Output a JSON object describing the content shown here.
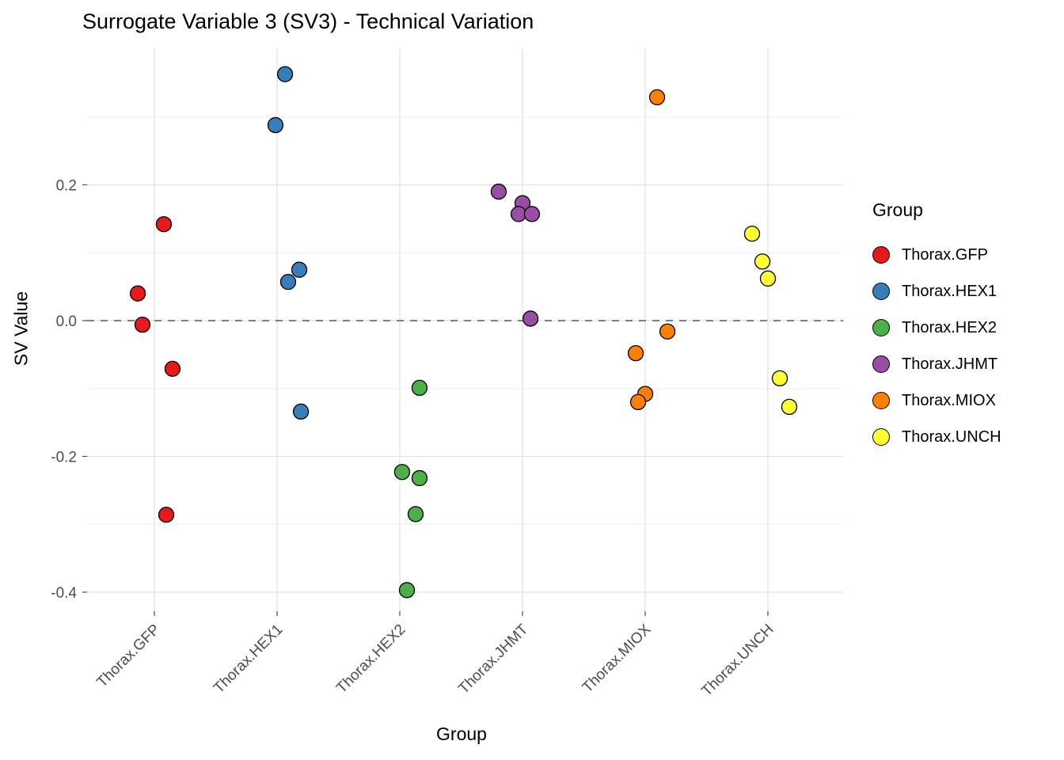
{
  "chart_data": {
    "type": "scatter",
    "title": "Surrogate Variable 3 (SV3) - Technical Variation",
    "xlabel": "Group",
    "ylabel": "SV Value",
    "categories": [
      "Thorax.GFP",
      "Thorax.HEX1",
      "Thorax.HEX2",
      "Thorax.JHMT",
      "Thorax.MIOX",
      "Thorax.UNCH"
    ],
    "yticks": [
      0.2,
      0.0,
      -0.2,
      -0.4
    ],
    "ytick_labels": [
      "0.2",
      "0.0",
      "-0.2",
      "-0.4"
    ],
    "minor_yticks": [
      0.3,
      0.1,
      -0.1,
      -0.3
    ],
    "ylim": [
      -0.43,
      0.4
    ],
    "grid": true,
    "reference_line": {
      "y": 0.0,
      "style": "dashed",
      "color": "#7f7f7f"
    },
    "legend": {
      "title": "Group",
      "position": "right"
    },
    "series": [
      {
        "name": "Thorax.GFP",
        "color": "#E41A1C",
        "points": [
          [
            0.077,
            0.142
          ],
          [
            -0.135,
            0.04
          ],
          [
            -0.097,
            -0.006
          ],
          [
            0.148,
            -0.071
          ],
          [
            0.097,
            -0.286
          ]
        ]
      },
      {
        "name": "Thorax.HEX1",
        "color": "#377EB8",
        "points": [
          [
            0.065,
            0.363
          ],
          [
            -0.013,
            0.288
          ],
          [
            0.181,
            0.075
          ],
          [
            0.09,
            0.057
          ],
          [
            0.194,
            -0.134
          ]
        ]
      },
      {
        "name": "Thorax.HEX2",
        "color": "#4DAF4A",
        "points": [
          [
            0.161,
            -0.099
          ],
          [
            0.019,
            -0.223
          ],
          [
            0.161,
            -0.232
          ],
          [
            0.129,
            -0.285
          ],
          [
            0.058,
            -0.397
          ]
        ]
      },
      {
        "name": "Thorax.JHMT",
        "color": "#984EA3",
        "points": [
          [
            -0.194,
            0.19
          ],
          [
            0.0,
            0.173
          ],
          [
            -0.032,
            0.157
          ],
          [
            0.077,
            0.157
          ],
          [
            0.065,
            0.003
          ]
        ]
      },
      {
        "name": "Thorax.MIOX",
        "color": "#FF7F00",
        "points": [
          [
            0.097,
            0.329
          ],
          [
            0.181,
            -0.016
          ],
          [
            -0.077,
            -0.048
          ],
          [
            0.0,
            -0.108
          ],
          [
            -0.058,
            -0.12
          ]
        ]
      },
      {
        "name": "Thorax.UNCH",
        "color": "#FFFF33",
        "points": [
          [
            -0.129,
            0.128
          ],
          [
            -0.045,
            0.087
          ],
          [
            0.0,
            0.062
          ],
          [
            0.097,
            -0.085
          ],
          [
            0.174,
            -0.127
          ]
        ]
      }
    ]
  }
}
